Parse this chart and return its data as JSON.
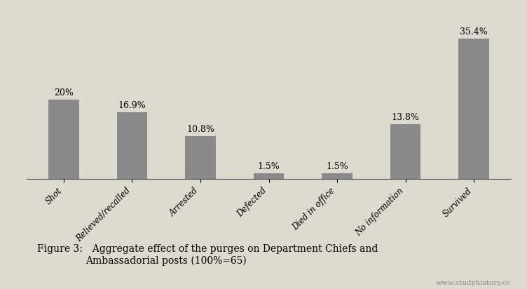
{
  "categories": [
    "Shot",
    "Relieved/recalled",
    "Arrested",
    "Defected",
    "Died in office",
    "No information",
    "Survived"
  ],
  "values": [
    20.0,
    16.9,
    10.8,
    1.5,
    1.5,
    13.8,
    35.4
  ],
  "labels": [
    "20%",
    "16.9%",
    "10.8%",
    "1.5%",
    "1.5%",
    "13.8%",
    "35.4%"
  ],
  "bar_color": "#8a8a8a",
  "background_color": "#dddad0",
  "figure_caption_smallcaps": "Figure 3:",
  "figure_caption_rest": "  Aggregate effect of the purges on Department Chiefs and\nAmbassadorial posts (100%=65)",
  "watermark": "www.studyhistory.cc",
  "ylim": [
    0,
    40
  ],
  "bar_width": 0.45,
  "caption_fontsize": 10.0,
  "label_fontsize": 9.0,
  "tick_fontsize": 8.5
}
